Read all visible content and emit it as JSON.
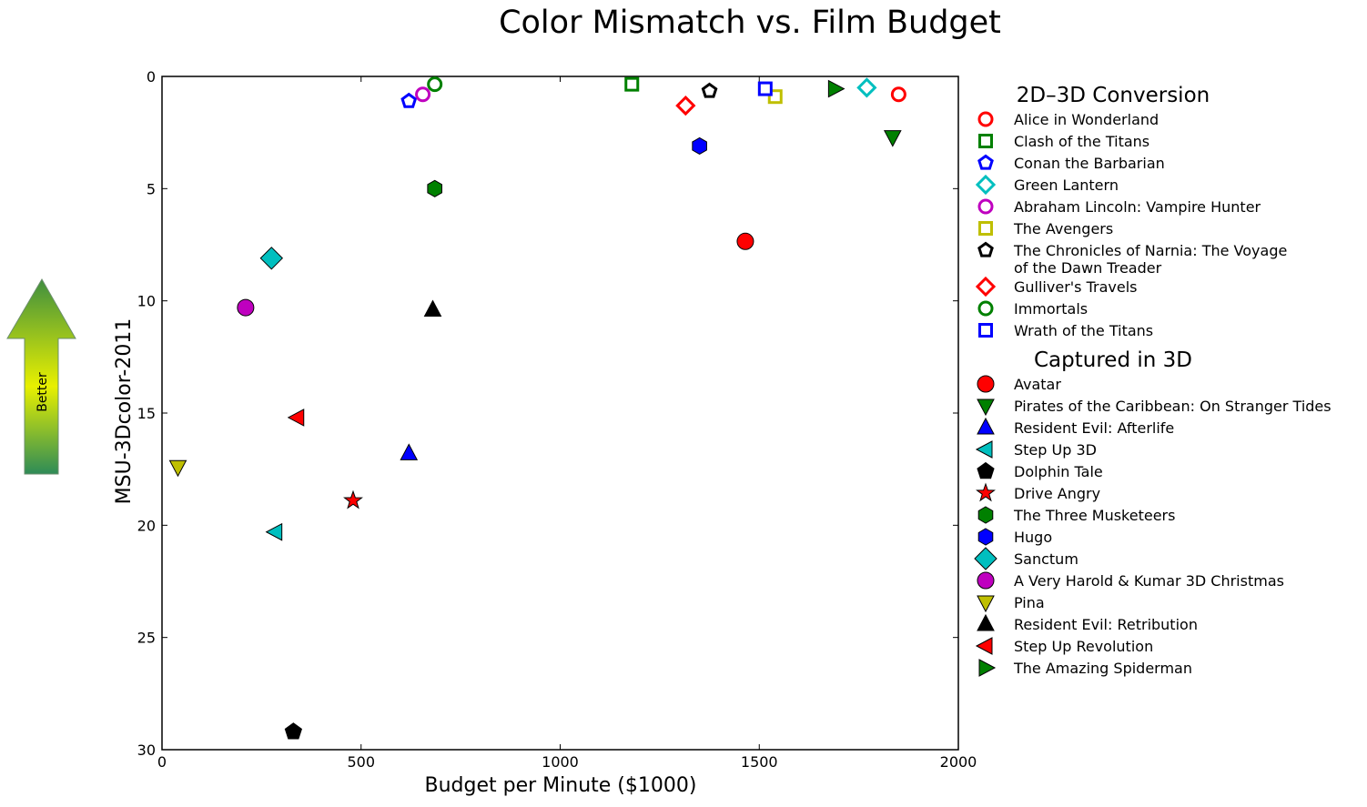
{
  "chart_data": {
    "type": "scatter",
    "title": "Color Mismatch vs. Film Budget",
    "xlabel": "Budget per Minute ($1000)",
    "ylabel": "MSU-3Dcolor-2011",
    "xlim": [
      0,
      2000
    ],
    "ylim": [
      0,
      30
    ],
    "y_inverted": true,
    "x_ticks": [
      "0",
      "500",
      "1000",
      "1500",
      "2000"
    ],
    "y_ticks": [
      "0",
      "5",
      "10",
      "15",
      "20",
      "25",
      "30"
    ],
    "grid": false,
    "legend_position": "right",
    "better_arrow": {
      "label": "Better",
      "direction": "up"
    },
    "groups": [
      {
        "name": "2D-3D Conversion",
        "display_name": "2D–3D Conversion",
        "filled": false,
        "series": [
          {
            "name": "Alice in Wonderland",
            "marker": "circle",
            "color": "#ff0000",
            "x": 1850,
            "y": 0.8
          },
          {
            "name": "Clash of the Titans",
            "marker": "square",
            "color": "#008000",
            "x": 1180,
            "y": 0.35
          },
          {
            "name": "Conan the Barbarian",
            "marker": "pentagon",
            "color": "#0000ff",
            "x": 620,
            "y": 1.1
          },
          {
            "name": "Green Lantern",
            "marker": "diamond",
            "color": "#00bfbf",
            "x": 1770,
            "y": 0.5
          },
          {
            "name": "Abraham Lincoln: Vampire Hunter",
            "marker": "circle",
            "color": "#bf00bf",
            "x": 655,
            "y": 0.8
          },
          {
            "name": "The Avengers",
            "marker": "square",
            "color": "#bfbf00",
            "x": 1540,
            "y": 0.9
          },
          {
            "name": "The Chronicles of Narnia: The Voyage of the Dawn Treader",
            "lines": [
              "The Chronicles of Narnia: The Voyage",
              "of the Dawn Treader"
            ],
            "marker": "pentagon",
            "color": "#000000",
            "x": 1375,
            "y": 0.65
          },
          {
            "name": "Gulliver's Travels",
            "marker": "diamond",
            "color": "#ff0000",
            "x": 1315,
            "y": 1.3
          },
          {
            "name": "Immortals",
            "marker": "circle",
            "color": "#008000",
            "x": 685,
            "y": 0.35
          },
          {
            "name": "Wrath of the Titans",
            "marker": "square",
            "color": "#0000ff",
            "x": 1515,
            "y": 0.55
          }
        ]
      },
      {
        "name": "Captured in 3D",
        "display_name": "Captured in 3D",
        "filled": true,
        "series": [
          {
            "name": "Avatar",
            "marker": "circle",
            "color": "#ff0000",
            "x": 1465,
            "y": 7.35
          },
          {
            "name": "Pirates of the Caribbean: On Stranger Tides",
            "marker": "triangle-down",
            "color": "#008000",
            "x": 1835,
            "y": 2.7
          },
          {
            "name": "Resident Evil: Afterlife",
            "marker": "triangle-up",
            "color": "#0000ff",
            "x": 620,
            "y": 16.8
          },
          {
            "name": "Step Up 3D",
            "marker": "triangle-left",
            "color": "#00bfbf",
            "x": 285,
            "y": 20.3
          },
          {
            "name": "Dolphin Tale",
            "marker": "pentagon",
            "color": "#000000",
            "x": 330,
            "y": 29.2
          },
          {
            "name": "Drive Angry",
            "marker": "star",
            "color": "#ff0000",
            "x": 480,
            "y": 18.9
          },
          {
            "name": "The Three Musketeers",
            "marker": "hexagon",
            "color": "#008000",
            "x": 685,
            "y": 5.0
          },
          {
            "name": "Hugo",
            "marker": "hexagon",
            "color": "#0000ff",
            "x": 1350,
            "y": 3.1
          },
          {
            "name": "Sanctum",
            "marker": "diamond",
            "color": "#00bfbf",
            "x": 275,
            "y": 8.1
          },
          {
            "name": "A Very Harold & Kumar 3D Christmas",
            "marker": "circle",
            "color": "#bf00bf",
            "x": 210,
            "y": 10.3
          },
          {
            "name": "Pina",
            "marker": "triangle-down",
            "color": "#bfbf00",
            "x": 40,
            "y": 17.4
          },
          {
            "name": "Resident Evil: Retribution",
            "marker": "triangle-up",
            "color": "#000000",
            "x": 680,
            "y": 10.4
          },
          {
            "name": "Step Up Revolution",
            "marker": "triangle-left",
            "color": "#ff0000",
            "x": 340,
            "y": 15.2
          },
          {
            "name": "The Amazing Spiderman",
            "marker": "triangle-right",
            "color": "#008000",
            "x": 1690,
            "y": 0.55
          }
        ]
      }
    ]
  }
}
